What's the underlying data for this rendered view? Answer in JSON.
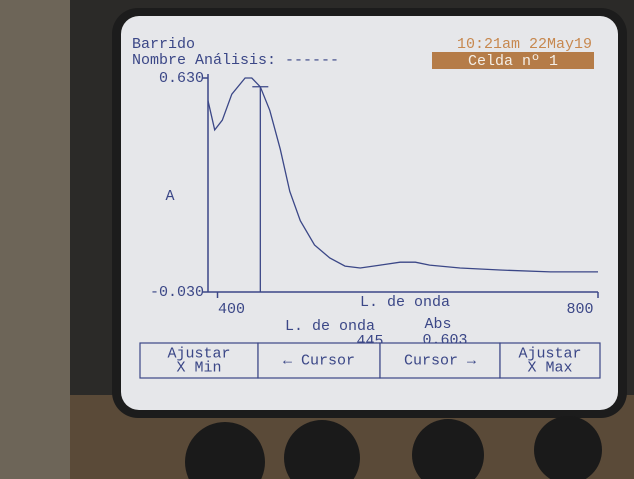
{
  "header": {
    "mode": "Barrido",
    "analysis_name": "Nombre Análisis: ------",
    "datetime": "10:21am 22May19",
    "cell": "Celda nº 1"
  },
  "chart_data": {
    "type": "line",
    "ylabel": "A",
    "xlabel": "L. de onda",
    "color": "#3b4787",
    "x": [
      390,
      397,
      405,
      415,
      429,
      436,
      445,
      455,
      466,
      476,
      487,
      502,
      518,
      534,
      550,
      571,
      592,
      608,
      623,
      655,
      697,
      750,
      800
    ],
    "values": [
      0.56,
      0.47,
      0.5,
      0.58,
      0.63,
      0.63,
      0.603,
      0.53,
      0.41,
      0.28,
      0.19,
      0.115,
      0.075,
      0.05,
      0.044,
      0.053,
      0.062,
      0.062,
      0.053,
      0.044,
      0.038,
      0.032,
      0.032
    ],
    "xlim": [
      390,
      800
    ],
    "ylim": [
      -0.03,
      0.63
    ],
    "xticks": [
      400,
      800
    ],
    "yticks": [
      {
        "value": 0.63,
        "label": "0.630"
      },
      {
        "value": -0.03,
        "label": "-0.030"
      }
    ]
  },
  "readout": {
    "x_label": "L. de onda",
    "y_label": "Abs",
    "x": 445,
    "y": 0.603
  },
  "softkeys": [
    [
      "Ajustar",
      "X Min"
    ],
    [
      "← Cursor"
    ],
    [
      "Cursor →"
    ],
    [
      "Ajustar",
      "X Max"
    ]
  ]
}
